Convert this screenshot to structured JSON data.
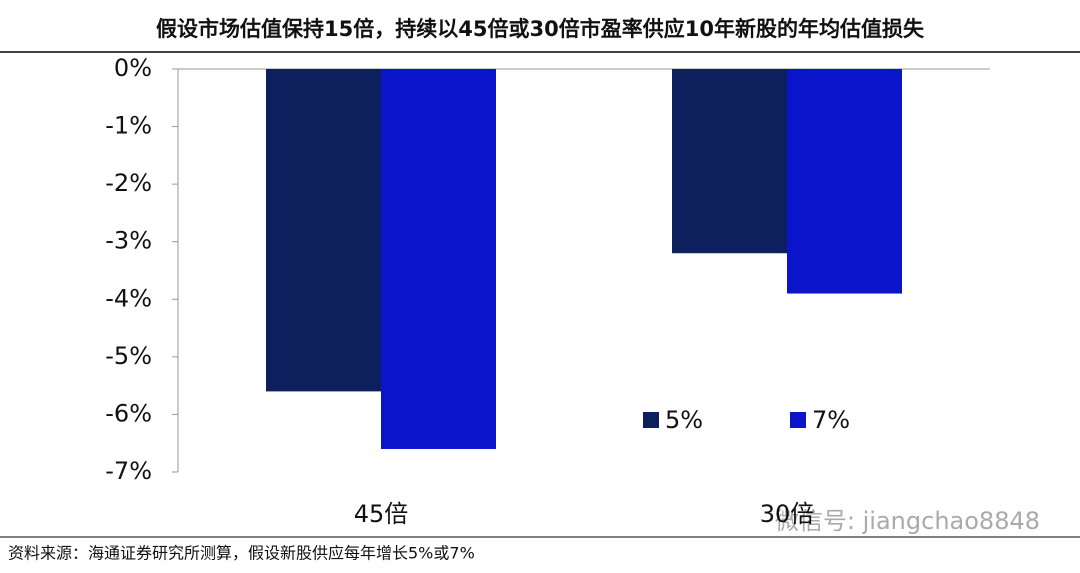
{
  "chart_data": {
    "type": "bar",
    "title": "假设市场估值保持15倍，持续以45倍或30倍市盈率供应10年新股的年均估值损失",
    "categories": [
      "45倍",
      "30倍"
    ],
    "series": [
      {
        "name": "5%",
        "color": "#0d1f5c",
        "values": [
          -5.6,
          -3.2
        ]
      },
      {
        "name": "7%",
        "color": "#0a14c8",
        "values": [
          -6.6,
          -3.9
        ]
      }
    ],
    "ylim": [
      -7,
      0
    ],
    "yticks": [
      {
        "value": 0,
        "label": "0%"
      },
      {
        "value": -1,
        "label": "-1%"
      },
      {
        "value": -2,
        "label": "-2%"
      },
      {
        "value": -3,
        "label": "-3%"
      },
      {
        "value": -4,
        "label": "-4%"
      },
      {
        "value": -5,
        "label": "-5%"
      },
      {
        "value": -6,
        "label": "-6%"
      },
      {
        "value": -7,
        "label": "-7%"
      }
    ],
    "legend": "lower-right",
    "source": "资料来源：海通证券研究所测算，假设新股供应每年增长5%或7%",
    "watermark": "微信号: jiangchao8848"
  }
}
